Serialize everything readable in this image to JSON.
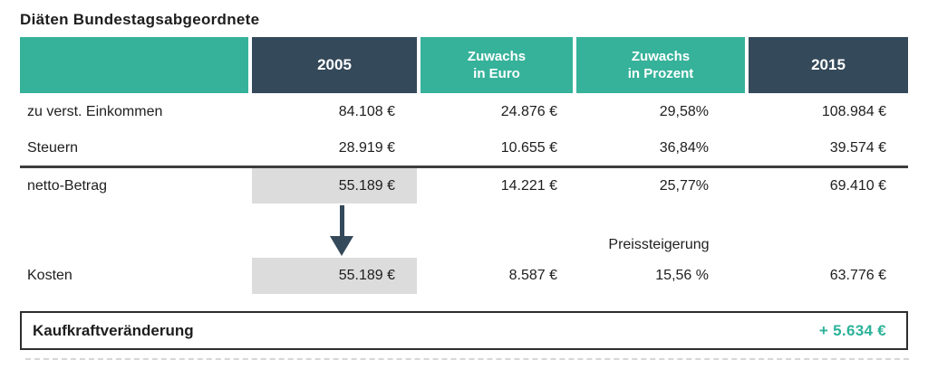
{
  "title": "Diäten Bundestagsabgeordnete",
  "colors": {
    "teal": "#36b29a",
    "dark_slate": "#34495a",
    "highlight_gray": "#dcdcdc",
    "positive_teal": "#2cb299",
    "text": "#1e1e1e"
  },
  "table": {
    "header": {
      "col_label": "",
      "col_2005": "2005",
      "col_zuwachs_euro": "Zuwachs\nin Euro",
      "col_zuwachs_prozent": "Zuwachs\nin Prozent",
      "col_2015": "2015"
    },
    "rows": [
      {
        "label": "zu verst. Einkommen",
        "y2005": "84.108 €",
        "zuwachs_euro": "24.876 €",
        "zuwachs_prozent": "29,58%",
        "y2015": "108.984 €"
      },
      {
        "label": "Steuern",
        "y2005": "28.919 €",
        "zuwachs_euro": "10.655 €",
        "zuwachs_prozent": "36,84%",
        "y2015": "39.574 €"
      },
      {
        "label": "netto-Betrag",
        "y2005": "55.189 €",
        "zuwachs_euro": "14.221 €",
        "zuwachs_prozent": "25,77%",
        "y2015": "69.410 €"
      },
      {
        "label": "Kosten",
        "y2005": "55.189 €",
        "zuwachs_euro": "8.587 €",
        "zuwachs_prozent": "15,56 %",
        "y2015": "63.776 €"
      }
    ]
  },
  "annotation": {
    "preissteigerung_label": "Preissteigerung"
  },
  "summary": {
    "label": "Kaufkraftveränderung",
    "value": "+ 5.634 €"
  },
  "chart_data": {
    "type": "table",
    "title": "Diäten Bundestagsabgeordnete",
    "columns": [
      "",
      "2005",
      "Zuwachs in Euro",
      "Zuwachs in Prozent",
      "2015"
    ],
    "rows": [
      [
        "zu verst. Einkommen",
        "84.108 €",
        "24.876 €",
        "29,58%",
        "108.984 €"
      ],
      [
        "Steuern",
        "28.919 €",
        "10.655 €",
        "36,84%",
        "39.574 €"
      ],
      [
        "netto-Betrag",
        "55.189 €",
        "14.221 €",
        "25,77%",
        "69.410 €"
      ],
      [
        "Kosten",
        "55.189 €",
        "8.587 €",
        "15,56 %",
        "63.776 €"
      ]
    ],
    "summary_row": [
      "Kaufkraftveränderung",
      "+ 5.634 €"
    ],
    "annotations": [
      "Preissteigerung label above Kosten percent value",
      "Gray highlight on 2005 values of netto-Betrag (55.189 €) and Kosten (55.189 €) connected by a downward arrow",
      "Thick rule between Steuern and netto-Betrag rows"
    ],
    "legend_position": "none",
    "grid": false
  }
}
